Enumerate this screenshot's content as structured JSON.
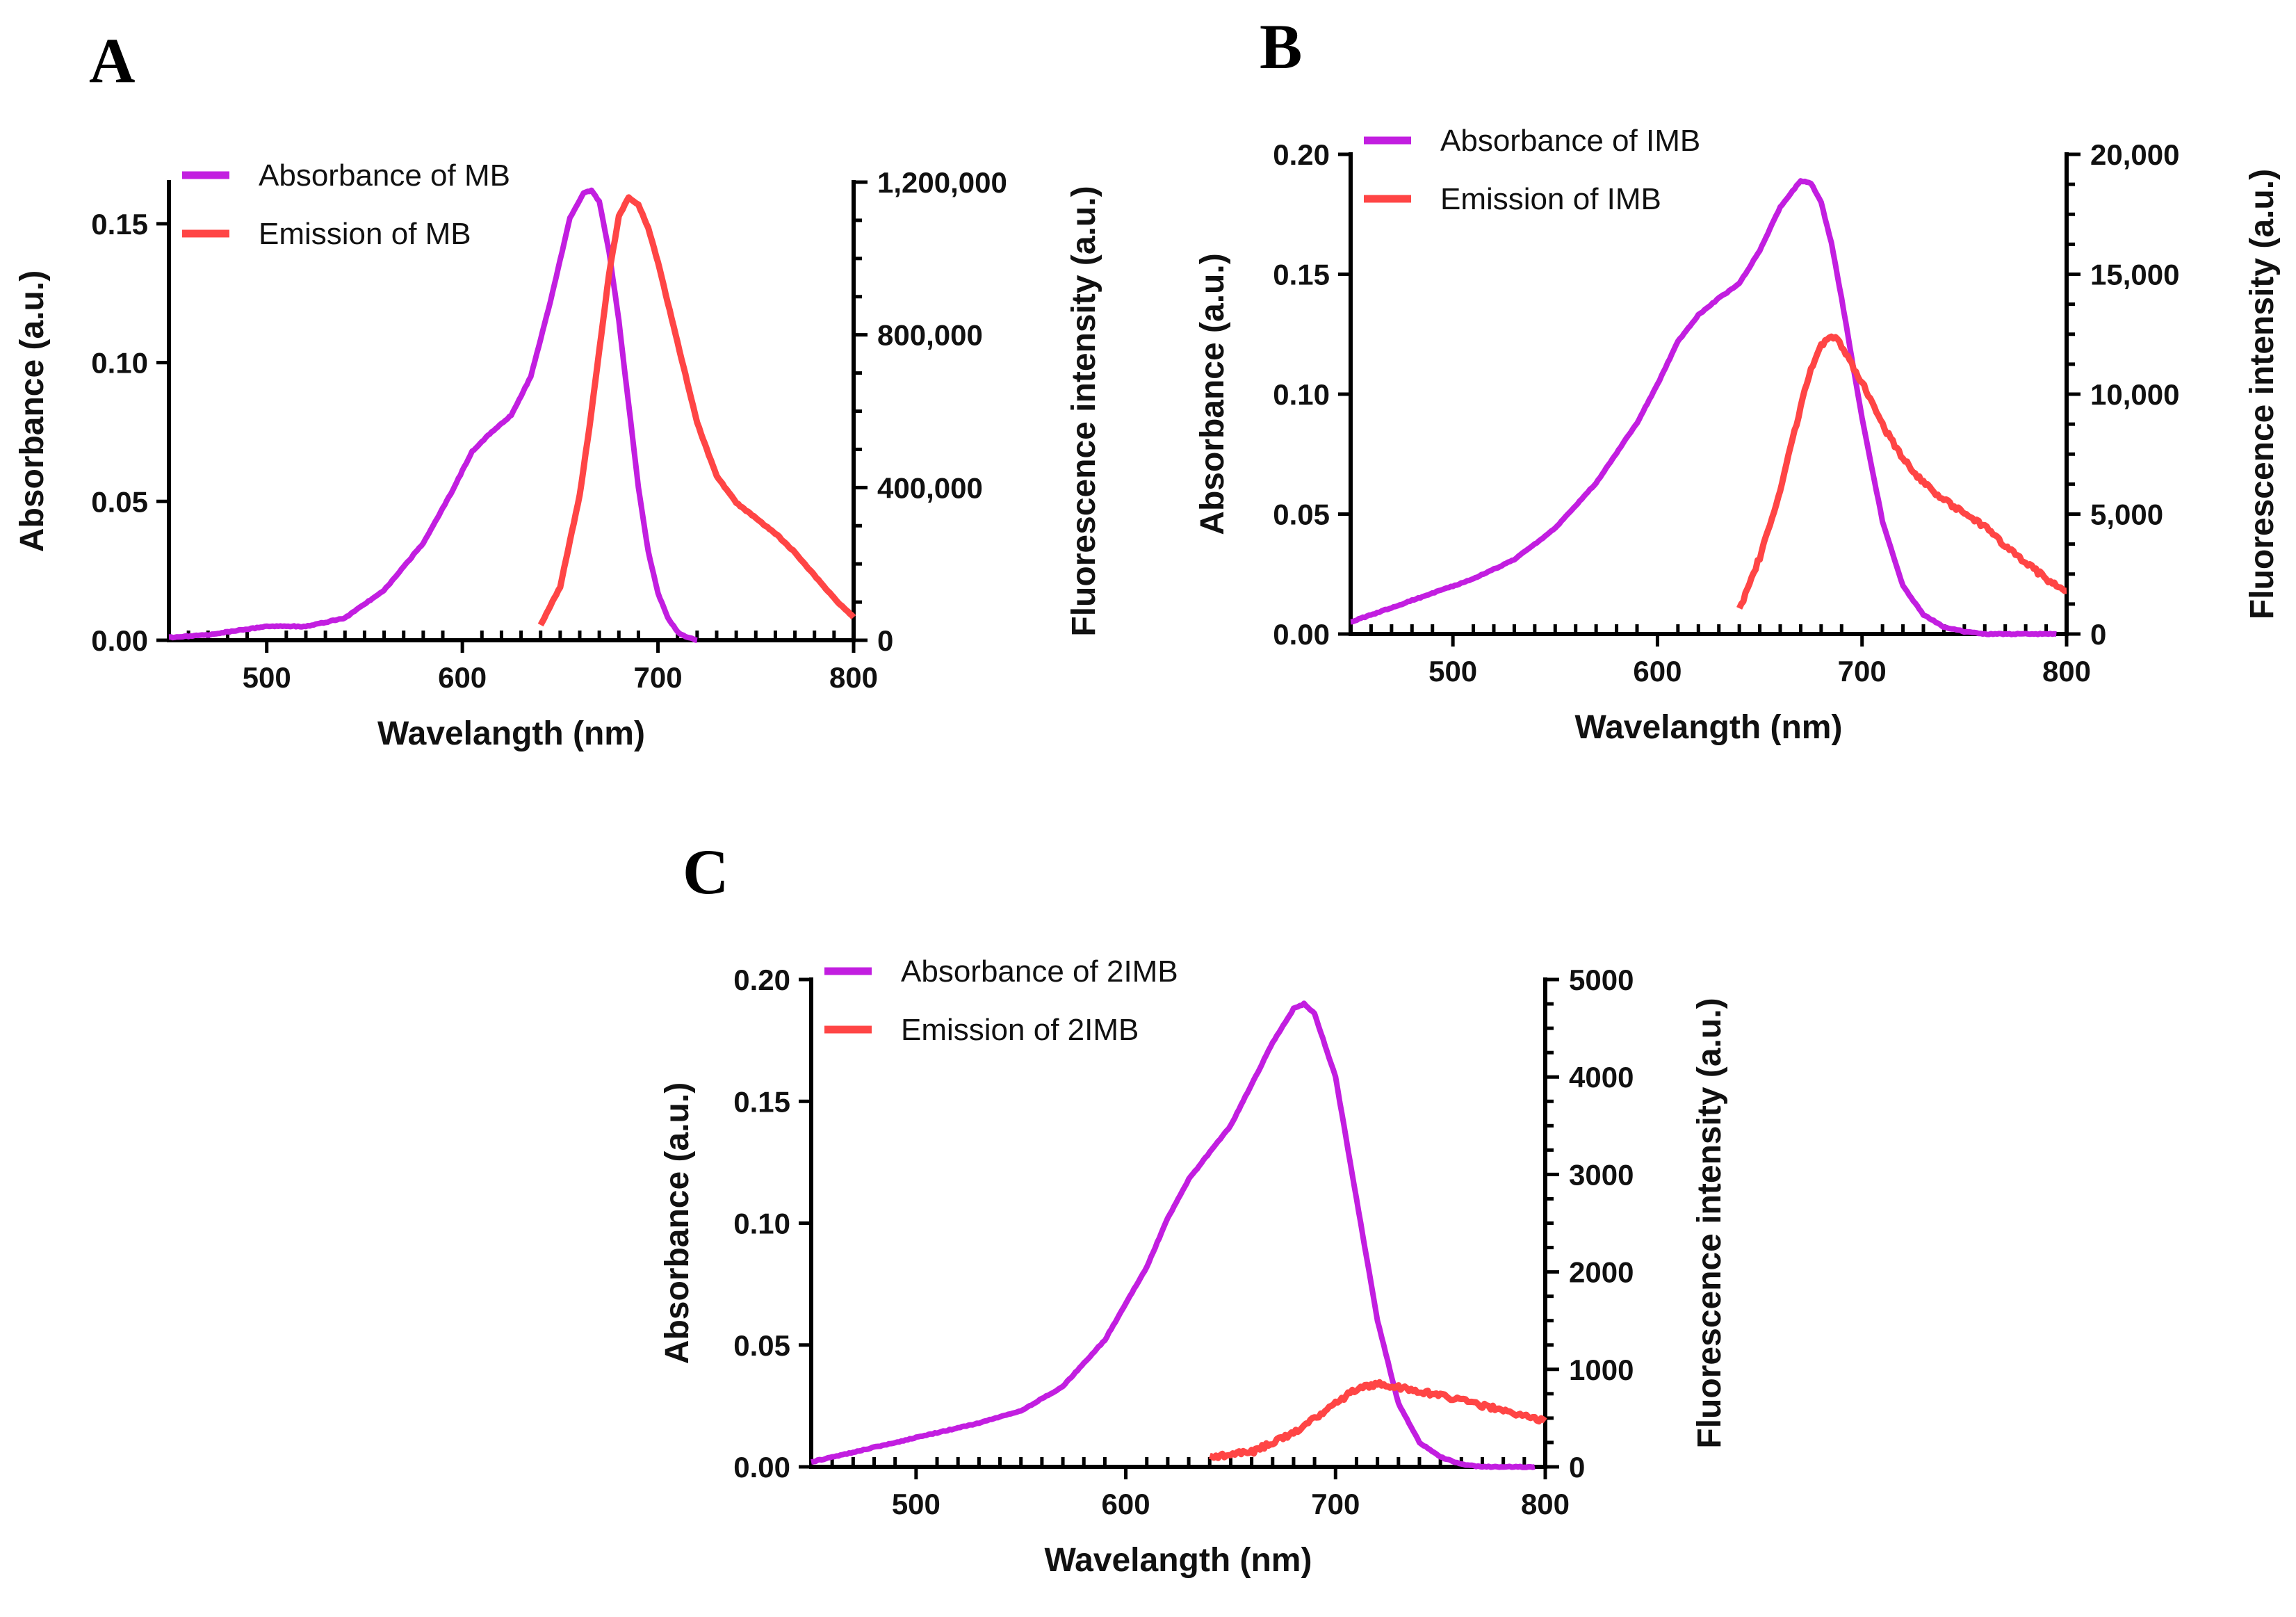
{
  "colors": {
    "absorbance": "#c21ee0",
    "emission": "#ff4545"
  },
  "chart_data": [
    {
      "panel": "A",
      "type": "line",
      "xlabel": "Wavelangth (nm)",
      "ylabel": "Absorbance (a.u.)",
      "y2label": "Fluorescence intensity (a.u.)",
      "xlim": [
        450,
        800
      ],
      "ylim": [
        0,
        0.165
      ],
      "y2lim": [
        0,
        1200000
      ],
      "xticks": [
        500,
        600,
        700,
        800
      ],
      "xtick_labels": [
        "500",
        "600",
        "700",
        "800"
      ],
      "yticks": [
        0,
        0.05,
        0.1,
        0.15
      ],
      "ytick_labels": [
        "0.00",
        "0.05",
        "0.10",
        "0.15"
      ],
      "y2ticks": [
        0,
        400000,
        800000,
        1200000
      ],
      "y2tick_labels": [
        "0",
        "400,000",
        "800,000",
        "1,200,000"
      ],
      "legend_position": "top-left",
      "series": [
        {
          "name": "Absorbance of MB",
          "axis": "left",
          "kind": "abs",
          "x": [
            450,
            470,
            490,
            500,
            520,
            540,
            560,
            580,
            595,
            605,
            615,
            625,
            635,
            645,
            655,
            662,
            666,
            670,
            675,
            680,
            685,
            690,
            695,
            700,
            705,
            710,
            715,
            720
          ],
          "y": [
            0.001,
            0.002,
            0.004,
            0.005,
            0.005,
            0.008,
            0.018,
            0.035,
            0.054,
            0.068,
            0.075,
            0.081,
            0.095,
            0.122,
            0.152,
            0.161,
            0.162,
            0.158,
            0.14,
            0.115,
            0.085,
            0.055,
            0.032,
            0.017,
            0.008,
            0.003,
            0.001,
            0.0
          ]
        },
        {
          "name": "Emission of MB",
          "axis": "right",
          "kind": "emi",
          "x": [
            640,
            650,
            660,
            665,
            670,
            675,
            680,
            685,
            690,
            695,
            700,
            710,
            720,
            730,
            740,
            750,
            760,
            770,
            780,
            790,
            800
          ],
          "y": [
            40000,
            140000,
            380000,
            560000,
            760000,
            960000,
            1110000,
            1160000,
            1140000,
            1080000,
            990000,
            780000,
            570000,
            430000,
            360000,
            320000,
            280000,
            230000,
            170000,
            110000,
            60000
          ]
        }
      ]
    },
    {
      "panel": "B",
      "type": "line",
      "xlabel": "Wavelangth (nm)",
      "ylabel": "Absorbance (a.u.)",
      "y2label": "Fluorescence intensity (a.u.)",
      "xlim": [
        450,
        800
      ],
      "ylim": [
        0,
        0.2
      ],
      "y2lim": [
        0,
        20000
      ],
      "xticks": [
        500,
        600,
        700,
        800
      ],
      "xtick_labels": [
        "500",
        "600",
        "700",
        "800"
      ],
      "yticks": [
        0,
        0.05,
        0.1,
        0.15,
        0.2
      ],
      "ytick_labels": [
        "0.00",
        "0.05",
        "0.10",
        "0.15",
        "0.20"
      ],
      "y2ticks": [
        0,
        5000,
        10000,
        15000,
        20000
      ],
      "y2tick_labels": [
        "0",
        "5,000",
        "10,000",
        "15,000",
        "20,000"
      ],
      "legend_position": "top-left",
      "series": [
        {
          "name": "Absorbance of IMB",
          "axis": "left",
          "kind": "abs",
          "x": [
            450,
            470,
            490,
            510,
            530,
            550,
            570,
            590,
            600,
            610,
            620,
            630,
            640,
            650,
            660,
            670,
            675,
            680,
            685,
            690,
            700,
            710,
            720,
            730,
            740,
            750,
            760,
            780,
            795
          ],
          "y": [
            0.005,
            0.011,
            0.017,
            0.023,
            0.031,
            0.044,
            0.063,
            0.088,
            0.104,
            0.122,
            0.133,
            0.14,
            0.146,
            0.16,
            0.178,
            0.189,
            0.188,
            0.18,
            0.163,
            0.14,
            0.09,
            0.047,
            0.02,
            0.008,
            0.003,
            0.001,
            0.0,
            0.0,
            0.0
          ]
        },
        {
          "name": "Emission of IMB",
          "axis": "right",
          "kind": "emi",
          "x": [
            640,
            650,
            660,
            670,
            675,
            680,
            685,
            690,
            700,
            710,
            720,
            730,
            740,
            750,
            760,
            770,
            780,
            790,
            800
          ],
          "y": [
            1000,
            3200,
            6000,
            9500,
            11000,
            12000,
            12500,
            12000,
            10500,
            8700,
            7300,
            6300,
            5600,
            5000,
            4500,
            3700,
            3000,
            2300,
            1800
          ]
        }
      ]
    },
    {
      "panel": "C",
      "type": "line",
      "xlabel": "Wavelangth (nm)",
      "ylabel": "Absorbance (a.u.)",
      "y2label": "Fluorescence intensity (a.u.)",
      "xlim": [
        450,
        800
      ],
      "ylim": [
        0,
        0.2
      ],
      "y2lim": [
        0,
        5000
      ],
      "xticks": [
        500,
        600,
        700,
        800
      ],
      "xtick_labels": [
        "500",
        "600",
        "700",
        "800"
      ],
      "yticks": [
        0,
        0.05,
        0.1,
        0.15,
        0.2
      ],
      "ytick_labels": [
        "0.00",
        "0.05",
        "0.10",
        "0.15",
        "0.20"
      ],
      "y2ticks": [
        0,
        1000,
        2000,
        3000,
        4000,
        5000
      ],
      "y2tick_labels": [
        "0",
        "1000",
        "2000",
        "3000",
        "4000",
        "5000"
      ],
      "legend_position": "top-left",
      "series": [
        {
          "name": "Absorbance of 2IMB",
          "axis": "left",
          "kind": "abs",
          "x": [
            450,
            470,
            490,
            510,
            530,
            550,
            570,
            590,
            610,
            620,
            630,
            640,
            650,
            660,
            670,
            680,
            685,
            690,
            700,
            710,
            720,
            730,
            740,
            750,
            760,
            770,
            780,
            795
          ],
          "y": [
            0.002,
            0.006,
            0.01,
            0.014,
            0.018,
            0.023,
            0.033,
            0.052,
            0.082,
            0.102,
            0.118,
            0.129,
            0.14,
            0.157,
            0.174,
            0.188,
            0.19,
            0.186,
            0.16,
            0.11,
            0.06,
            0.026,
            0.01,
            0.004,
            0.001,
            0.0,
            0.0,
            0.0
          ]
        },
        {
          "name": "Emission of 2IMB",
          "axis": "right",
          "kind": "emi",
          "x": [
            640,
            660,
            680,
            690,
            700,
            710,
            720,
            730,
            740,
            750,
            760,
            770,
            780,
            790,
            800
          ],
          "y": [
            100,
            150,
            350,
            500,
            650,
            800,
            850,
            820,
            780,
            730,
            680,
            630,
            580,
            520,
            470
          ]
        }
      ]
    }
  ]
}
